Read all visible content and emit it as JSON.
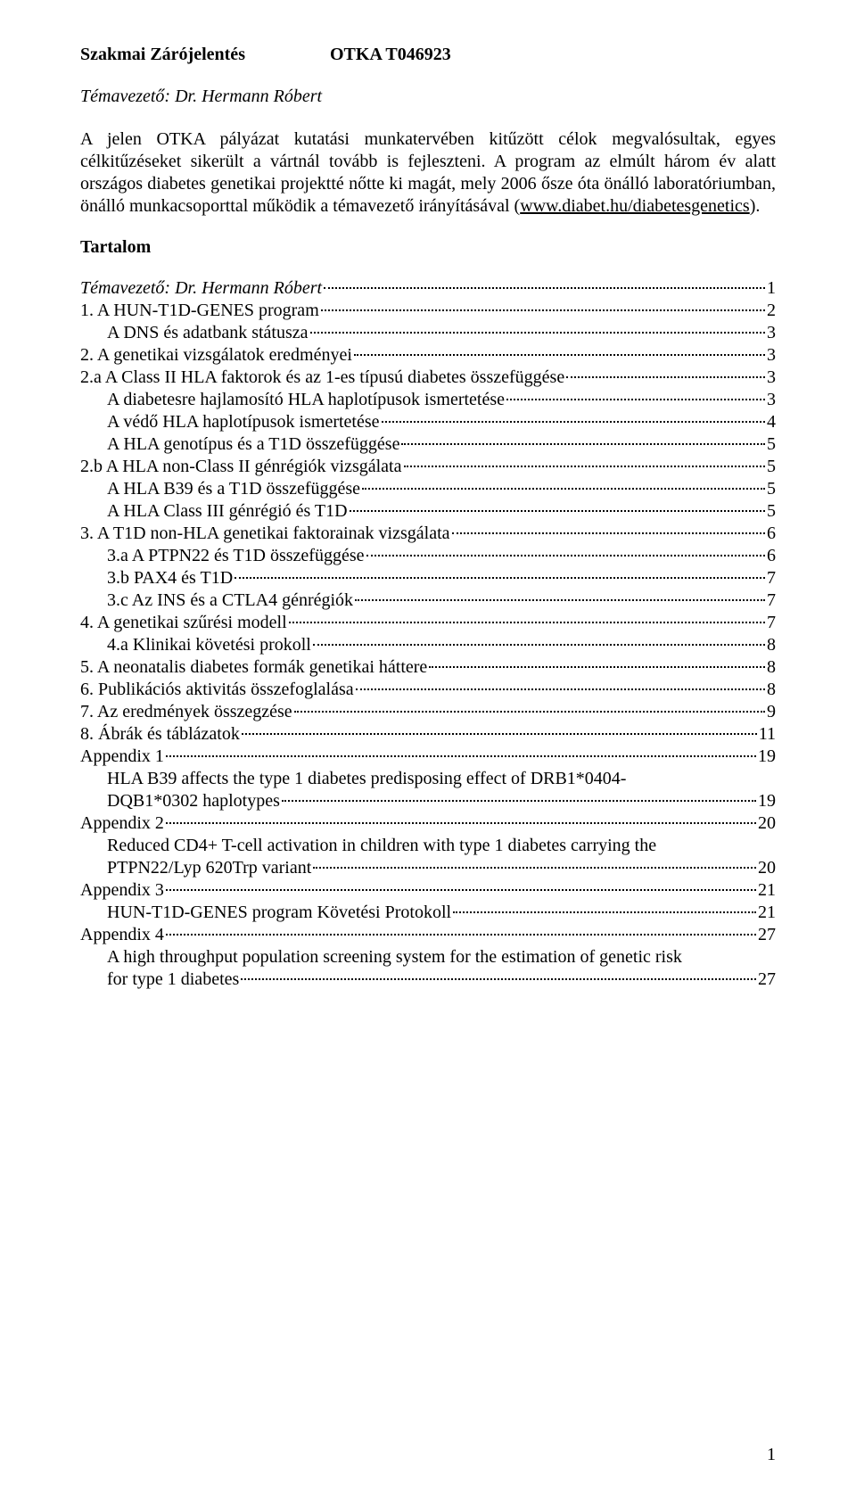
{
  "header": {
    "left": "Szakmai Zárójelentés",
    "right": "OTKA T046923"
  },
  "supervisor_line": "Témavezető: Dr. Hermann Róbert",
  "intro": {
    "p1": "A jelen OTKA pályázat kutatási munkatervében kitűzött célok megvalósultak, egyes célkitűzéseket sikerült a vártnál tovább is fejleszteni. A program az elmúlt három év alatt országos diabetes genetikai projektté nőtte ki magát, mely 2006 ősze óta önálló laboratóriumban, önálló munkacsoporttal működik a témavezető irányításával (",
    "link": "www.diabet.hu/diabetesgenetics",
    "p2": ")."
  },
  "tartalom_heading": "Tartalom",
  "toc": [
    {
      "label": "Témavezető: Dr. Hermann Róbert",
      "page": "1",
      "indent": 0,
      "italic": true
    },
    {
      "label": "1. A HUN-T1D-GENES program",
      "page": "2",
      "indent": 0
    },
    {
      "label": "A DNS és adatbank státusza",
      "page": "3",
      "indent": 1
    },
    {
      "label": "2. A genetikai vizsgálatok eredményei",
      "page": "3",
      "indent": 0
    },
    {
      "label": "2.a A Class II HLA faktorok és az 1-es típusú diabetes összefüggése",
      "page": "3",
      "indent": 0
    },
    {
      "label": "A diabetesre hajlamosító HLA haplotípusok ismertetése",
      "page": "3",
      "indent": 1
    },
    {
      "label": "A védő HLA haplotípusok ismertetése",
      "page": "4",
      "indent": 1
    },
    {
      "label": "A HLA genotípus és a T1D összefüggése",
      "page": "5",
      "indent": 1
    },
    {
      "label": "2.b A HLA non-Class II génrégiók vizsgálata",
      "page": "5",
      "indent": 0
    },
    {
      "label": "A HLA B39 és a T1D összefüggése",
      "page": "5",
      "indent": 1
    },
    {
      "label": "A HLA Class III génrégió és T1D",
      "page": "5",
      "indent": 1
    },
    {
      "label": "3. A T1D non-HLA genetikai faktorainak vizsgálata",
      "page": "6",
      "indent": 0
    },
    {
      "label": "3.a A PTPN22 és T1D összefüggése",
      "page": "6",
      "indent": 1
    },
    {
      "label": "3.b PAX4 és T1D",
      "page": "7",
      "indent": 1
    },
    {
      "label": "3.c Az INS és a CTLA4 génrégiók",
      "page": "7",
      "indent": 1
    },
    {
      "label": "4. A genetikai szűrési modell",
      "page": "7",
      "indent": 0
    },
    {
      "label": "4.a Klinikai követési prokoll",
      "page": "8",
      "indent": 1
    },
    {
      "label": "5. A neonatalis diabetes formák genetikai háttere",
      "page": "8",
      "indent": 0
    },
    {
      "label": "6. Publikációs aktivitás összefoglalása",
      "page": "8",
      "indent": 0
    },
    {
      "label": "7. Az eredmények összegzése",
      "page": "9",
      "indent": 0
    },
    {
      "label": "8. Ábrák és táblázatok",
      "page": "11",
      "indent": 0
    },
    {
      "label": "Appendix 1",
      "page": "19",
      "indent": 0
    },
    {
      "label": "HLA B39 affects the type 1 diabetes predisposing effect of DRB1*0404-",
      "indent": 1,
      "noleader": true
    },
    {
      "label": "DQB1*0302 haplotypes",
      "page": "19",
      "indent": 1
    },
    {
      "label": "Appendix 2",
      "page": "20",
      "indent": 0
    },
    {
      "label": "Reduced CD4+ T-cell activation in children with type 1 diabetes carrying the",
      "indent": 1,
      "noleader": true
    },
    {
      "label": "PTPN22/Lyp 620Trp variant",
      "page": "20",
      "indent": 1
    },
    {
      "label": "Appendix 3",
      "page": "21",
      "indent": 0
    },
    {
      "label": "HUN-T1D-GENES program Követési Protokoll",
      "page": "21",
      "indent": 1
    },
    {
      "label": "Appendix 4",
      "page": "27",
      "indent": 0
    },
    {
      "label": "A high throughput population screening system for the estimation of genetic risk",
      "indent": 1,
      "noleader": true
    },
    {
      "label": "for type 1 diabetes",
      "page": "27",
      "indent": 1
    }
  ],
  "page_number": "1"
}
